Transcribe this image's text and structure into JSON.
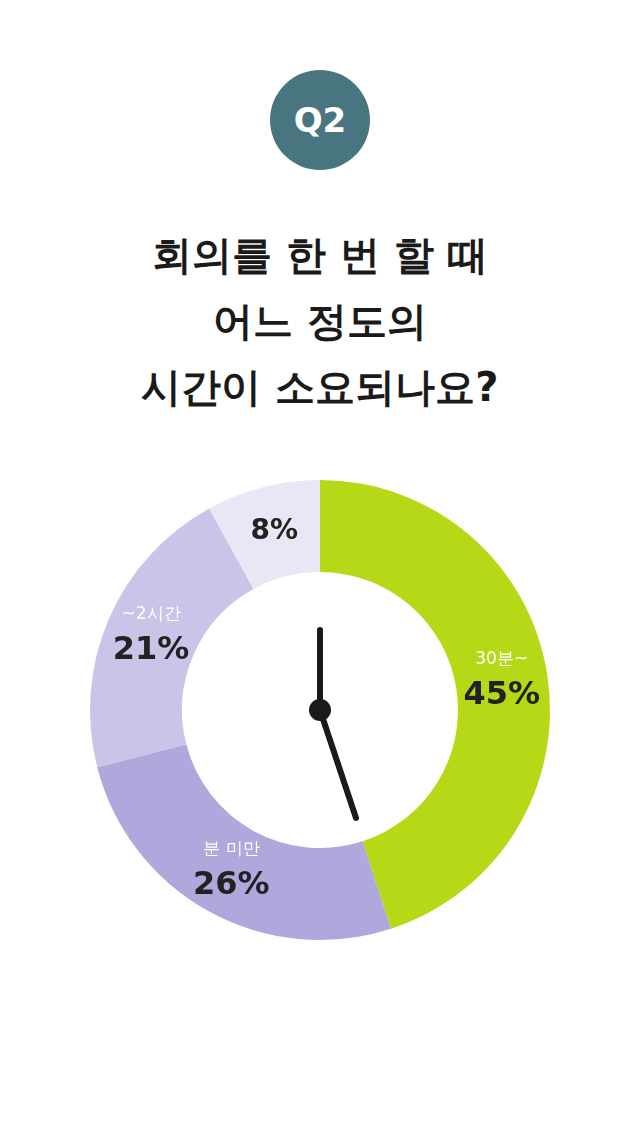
{
  "chart_data": {
    "type": "doughnut",
    "subtitle": "Q2",
    "title": [
      "회의를 한 번 할 때",
      "어느 정도의",
      "시간이 소요되나요?"
    ],
    "categories": [
      "30분~",
      "분 미만",
      "~2시간",
      null
    ],
    "values": [
      45,
      26,
      21,
      8
    ],
    "value_labels": [
      "45%",
      "26%",
      "21%",
      "8%"
    ],
    "colors": [
      "#b5d916",
      "#aea8dc",
      "#cac5e8",
      "#e9e7f5"
    ],
    "data_labels": true
  }
}
